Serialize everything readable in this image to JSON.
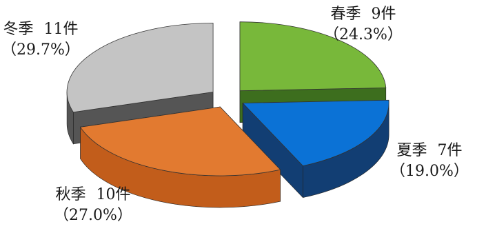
{
  "chart_data": {
    "type": "pie",
    "three_d": true,
    "legend": "none",
    "slices": [
      {
        "name": "春季",
        "count_label": "9件",
        "value": 9,
        "percent_label": "（24.3%）",
        "color": "#78b83a",
        "side_color": "#3d6e1e"
      },
      {
        "name": "夏季",
        "count_label": "7件",
        "value": 7,
        "percent_label": "（19.0%）",
        "color": "#0b72d6",
        "side_color": "#123e73"
      },
      {
        "name": "秋季",
        "count_label": "10件",
        "value": 10,
        "percent_label": "（27.0%）",
        "color": "#e27a30",
        "side_color": "#c25d1b"
      },
      {
        "name": "冬季",
        "count_label": "11件",
        "value": 11,
        "percent_label": "（29.7%）",
        "color": "#c4c4c4",
        "side_color": "#555555"
      }
    ]
  }
}
